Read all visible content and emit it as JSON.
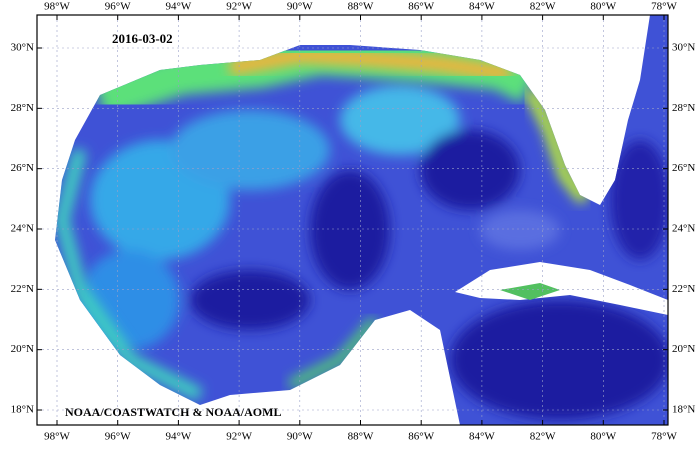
{
  "map": {
    "date": "2016-03-02",
    "credit": "NOAA/COASTWATCH & NOAA/AOML",
    "lon_ticks": [
      {
        "value": -98,
        "label": "98°W"
      },
      {
        "value": -96,
        "label": "96°W"
      },
      {
        "value": -94,
        "label": "94°W"
      },
      {
        "value": -92,
        "label": "92°W"
      },
      {
        "value": -90,
        "label": "90°W"
      },
      {
        "value": -88,
        "label": "88°W"
      },
      {
        "value": -86,
        "label": "86°W"
      },
      {
        "value": -84,
        "label": "84°W"
      },
      {
        "value": -82,
        "label": "82°W"
      },
      {
        "value": -80,
        "label": "80°W"
      },
      {
        "value": -78,
        "label": "78°W"
      }
    ],
    "lat_ticks": [
      {
        "value": 18,
        "label": "18°N"
      },
      {
        "value": 20,
        "label": "20°N"
      },
      {
        "value": 22,
        "label": "22°N"
      },
      {
        "value": 24,
        "label": "24°N"
      },
      {
        "value": 26,
        "label": "26°N"
      },
      {
        "value": 28,
        "label": "28°N"
      },
      {
        "value": 30,
        "label": "30°N"
      }
    ]
  }
}
